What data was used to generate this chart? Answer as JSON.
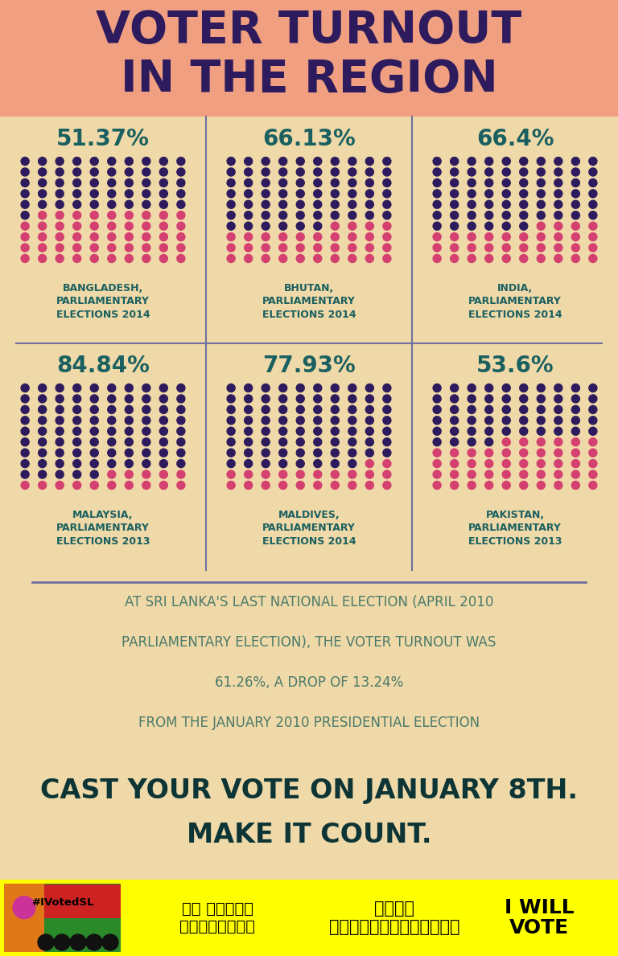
{
  "title": "VOTER TURNOUT\nIN THE REGION",
  "title_color": "#2d1b5e",
  "header_bg": "#f0a080",
  "main_bg": "#f0d9a8",
  "dot_color_dark": "#2d1b5e",
  "dot_color_pink": "#d44070",
  "label_color": "#1a6060",
  "bottom_text_color": "#4a7a6a",
  "cta_color": "#0d3535",
  "footer_bg": "#ffff00",
  "sep_color": "#7070a0",
  "panels": [
    {
      "pct": 51.37,
      "label": "BANGLADESH,\nPARLIAMENTARY\nELECTIONS 2014"
    },
    {
      "pct": 66.13,
      "label": "BHUTAN,\nPARLIAMENTARY\nELECTIONS 2014"
    },
    {
      "pct": 66.4,
      "label": "INDIA,\nPARLIAMENTARY\nELECTIONS 2014"
    },
    {
      "pct": 84.84,
      "label": "MALAYSIA,\nPARLIAMENTARY\nELECTIONS 2013"
    },
    {
      "pct": 77.93,
      "label": "MALDIVES,\nPARLIAMENTARY\nELECTIONS 2014"
    },
    {
      "pct": 53.6,
      "label": "PAKISTAN,\nPARLIAMENTARY\nELECTIONS 2013"
    }
  ],
  "bottom_text_lines": [
    "AT SRI LANKA'S LAST NATIONAL ELECTION (APRIL 2010",
    "PARLIAMENTARY ELECTION), THE VOTER TURNOUT WAS",
    "61.26%, A DROP OF 13.24%",
    "FROM THE JANUARY 2010 PRESIDENTIAL ELECTION"
  ],
  "cta_line1": "CAST YOUR VOTE ON JANUARY 8TH.",
  "cta_line2": "MAKE IT COUNT.",
  "footer_sinhala": "මම ජන්දය\nදමන්නෛමි",
  "footer_tamil": "நான்\nவாக்களிப்பேன்",
  "footer_english": "I WILL\nVOTE",
  "grid_cols": 10,
  "grid_rows": 10
}
